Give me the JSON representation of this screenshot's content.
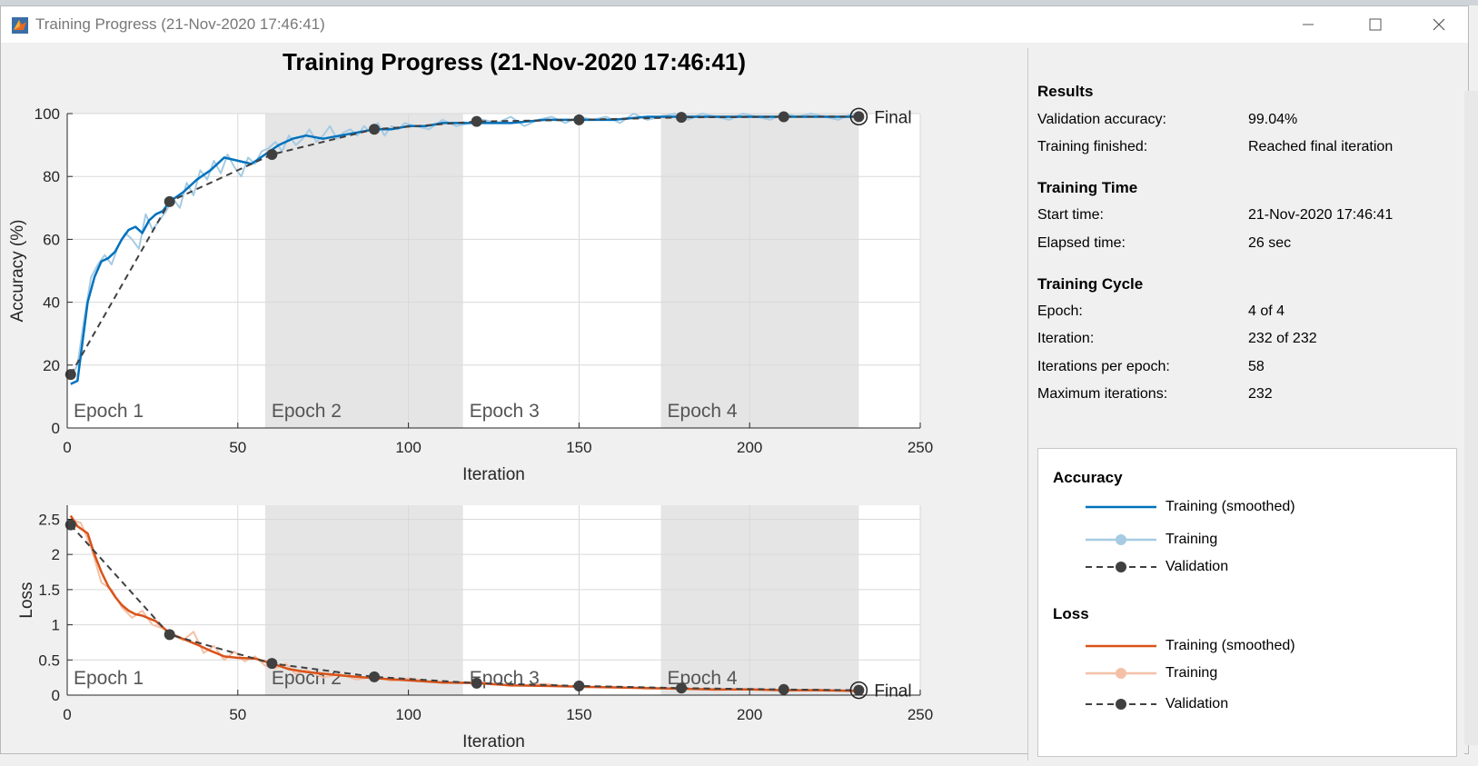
{
  "window": {
    "title": "Training Progress (21-Nov-2020 17:46:41)",
    "controls": {
      "minimize_icon": "minimize-icon",
      "maximize_icon": "maximize-icon",
      "close_icon": "close-icon"
    }
  },
  "figure": {
    "title": "Training Progress (21-Nov-2020 17:46:41)"
  },
  "results": {
    "title": "Results",
    "rows": [
      {
        "label": "Validation accuracy:",
        "value": "99.04%"
      },
      {
        "label": "Training finished:",
        "value": "Reached final iteration"
      }
    ]
  },
  "training_time": {
    "title": "Training Time",
    "rows": [
      {
        "label": "Start time:",
        "value": "21-Nov-2020 17:46:41"
      },
      {
        "label": "Elapsed time:",
        "value": "26 sec"
      }
    ]
  },
  "training_cycle": {
    "title": "Training Cycle",
    "rows": [
      {
        "label": "Epoch:",
        "value": "4 of 4"
      },
      {
        "label": "Iteration:",
        "value": "232 of 232"
      },
      {
        "label": "Iterations per epoch:",
        "value": "58"
      },
      {
        "label": "Maximum iterations:",
        "value": "232"
      }
    ]
  },
  "legend": {
    "accuracy_title": "Accuracy",
    "loss_title": "Loss",
    "accuracy_items": [
      "Training (smoothed)",
      "Training",
      "Validation"
    ],
    "loss_items": [
      "Training (smoothed)",
      "Training",
      "Validation"
    ]
  },
  "colors": {
    "accuracy_smoothed": "#0072bd",
    "accuracy_raw": "#a6cbe3",
    "loss_smoothed": "#d95319",
    "loss_raw": "#f4c0a8",
    "validation": "#404040",
    "epoch_shade": "#e5e5e5"
  },
  "chart_data": [
    {
      "type": "line",
      "name": "accuracy-plot",
      "xlabel": "Iteration",
      "ylabel": "Accuracy (%)",
      "xlim": [
        0,
        250
      ],
      "ylim": [
        0,
        100
      ],
      "xticks": [
        "0",
        "50",
        "100",
        "150",
        "200",
        "250"
      ],
      "yticks": [
        "0",
        "20",
        "40",
        "60",
        "80",
        "100"
      ],
      "epochs": [
        {
          "label": "Epoch 1",
          "start": 0,
          "end": 58,
          "shaded": false
        },
        {
          "label": "Epoch 2",
          "start": 58,
          "end": 116,
          "shaded": true
        },
        {
          "label": "Epoch 3",
          "start": 116,
          "end": 174,
          "shaded": false
        },
        {
          "label": "Epoch 4",
          "start": 174,
          "end": 232,
          "shaded": true
        }
      ],
      "final_label": "Final",
      "series": [
        {
          "name": "Training (smoothed)",
          "x": [
            1,
            3,
            6,
            8,
            10,
            12,
            14,
            16,
            18,
            20,
            22,
            24,
            26,
            28,
            30,
            34,
            38,
            42,
            46,
            50,
            54,
            58,
            62,
            66,
            70,
            75,
            80,
            85,
            90,
            95,
            100,
            105,
            110,
            115,
            120,
            130,
            140,
            150,
            160,
            170,
            180,
            190,
            200,
            210,
            220,
            232
          ],
          "y": [
            14,
            15,
            40,
            48,
            53,
            54,
            56,
            60,
            63,
            64,
            62,
            66,
            68,
            69,
            72,
            75,
            79,
            82,
            86,
            85,
            84,
            87,
            90,
            92,
            93,
            92,
            93,
            94,
            95,
            95,
            96,
            96,
            97,
            97,
            97,
            97,
            98,
            98,
            98,
            99,
            99,
            99,
            99,
            99,
            99,
            99
          ]
        },
        {
          "name": "Training",
          "x": [
            1,
            3,
            5,
            7,
            9,
            11,
            13,
            15,
            17,
            19,
            21,
            23,
            25,
            27,
            29,
            31,
            33,
            35,
            37,
            39,
            41,
            43,
            45,
            47,
            49,
            51,
            53,
            55,
            57,
            59,
            61,
            63,
            65,
            67,
            69,
            71,
            73,
            75,
            77,
            79,
            81,
            83,
            85,
            87,
            89,
            91,
            93,
            95,
            97,
            99,
            102,
            106,
            110,
            114,
            118,
            122,
            126,
            130,
            134,
            138,
            142,
            146,
            150,
            154,
            158,
            162,
            166,
            170,
            174,
            178,
            182,
            186,
            190,
            194,
            198,
            202,
            206,
            210,
            214,
            218,
            222,
            226,
            230,
            232
          ],
          "y": [
            16,
            20,
            35,
            48,
            52,
            55,
            52,
            58,
            62,
            60,
            57,
            68,
            63,
            66,
            69,
            73,
            70,
            78,
            74,
            82,
            79,
            85,
            81,
            87,
            83,
            80,
            86,
            84,
            88,
            89,
            91,
            88,
            93,
            90,
            92,
            95,
            91,
            93,
            96,
            92,
            94,
            95,
            93,
            96,
            94,
            97,
            93,
            96,
            95,
            97,
            96,
            95,
            98,
            96,
            97,
            98,
            97,
            99,
            96,
            98,
            99,
            97,
            99,
            98,
            99,
            97,
            100,
            98,
            99,
            100,
            98,
            100,
            99,
            98,
            100,
            99,
            98,
            100,
            99,
            100,
            99,
            98,
            100,
            99
          ]
        },
        {
          "name": "Validation",
          "x": [
            1,
            30,
            60,
            90,
            120,
            150,
            180,
            210,
            232
          ],
          "y": [
            17,
            72,
            87,
            95,
            97.5,
            98,
            98.8,
            99,
            99.04
          ]
        }
      ]
    },
    {
      "type": "line",
      "name": "loss-plot",
      "xlabel": "Iteration",
      "ylabel": "Loss",
      "xlim": [
        0,
        250
      ],
      "ylim": [
        0,
        2.7
      ],
      "xticks": [
        "0",
        "50",
        "100",
        "150",
        "200",
        "250"
      ],
      "yticks": [
        "0",
        "0.5",
        "1",
        "1.5",
        "2",
        "2.5"
      ],
      "epochs": [
        {
          "label": "Epoch 1",
          "start": 0,
          "end": 58,
          "shaded": false
        },
        {
          "label": "Epoch 2",
          "start": 58,
          "end": 116,
          "shaded": true
        },
        {
          "label": "Epoch 3",
          "start": 116,
          "end": 174,
          "shaded": false
        },
        {
          "label": "Epoch 4",
          "start": 174,
          "end": 232,
          "shaded": true
        }
      ],
      "final_label": "Final",
      "series": [
        {
          "name": "Training (smoothed)",
          "x": [
            1,
            3,
            6,
            8,
            10,
            12,
            14,
            16,
            18,
            20,
            22,
            26,
            30,
            34,
            38,
            42,
            46,
            50,
            55,
            60,
            65,
            70,
            80,
            90,
            100,
            110,
            120,
            130,
            140,
            150,
            160,
            170,
            180,
            190,
            200,
            210,
            220,
            232
          ],
          "y": [
            2.55,
            2.4,
            2.3,
            2.0,
            1.75,
            1.55,
            1.4,
            1.28,
            1.2,
            1.15,
            1.13,
            1.05,
            0.88,
            0.8,
            0.72,
            0.63,
            0.55,
            0.53,
            0.52,
            0.45,
            0.37,
            0.33,
            0.28,
            0.24,
            0.21,
            0.18,
            0.17,
            0.14,
            0.13,
            0.12,
            0.11,
            0.1,
            0.09,
            0.08,
            0.08,
            0.07,
            0.07,
            0.06
          ]
        },
        {
          "name": "Training",
          "x": [
            1,
            4,
            7,
            10,
            13,
            16,
            19,
            22,
            25,
            28,
            31,
            34,
            37,
            40,
            43,
            46,
            49,
            52,
            55,
            58,
            61,
            64,
            67,
            70,
            75,
            80,
            85,
            90,
            95,
            100,
            110,
            120,
            130,
            140,
            150,
            160,
            170,
            180,
            190,
            200,
            210,
            220,
            232
          ],
          "y": [
            2.5,
            2.45,
            2.1,
            1.6,
            1.5,
            1.25,
            1.1,
            1.2,
            1.0,
            0.95,
            0.85,
            0.78,
            0.9,
            0.6,
            0.7,
            0.5,
            0.62,
            0.48,
            0.55,
            0.42,
            0.38,
            0.45,
            0.3,
            0.36,
            0.25,
            0.3,
            0.22,
            0.27,
            0.2,
            0.24,
            0.17,
            0.19,
            0.13,
            0.16,
            0.11,
            0.12,
            0.09,
            0.1,
            0.07,
            0.09,
            0.06,
            0.08,
            0.05
          ]
        },
        {
          "name": "Validation",
          "x": [
            1,
            30,
            60,
            90,
            120,
            150,
            180,
            210,
            232
          ],
          "y": [
            2.42,
            0.86,
            0.45,
            0.26,
            0.17,
            0.13,
            0.1,
            0.08,
            0.07
          ]
        }
      ]
    }
  ]
}
